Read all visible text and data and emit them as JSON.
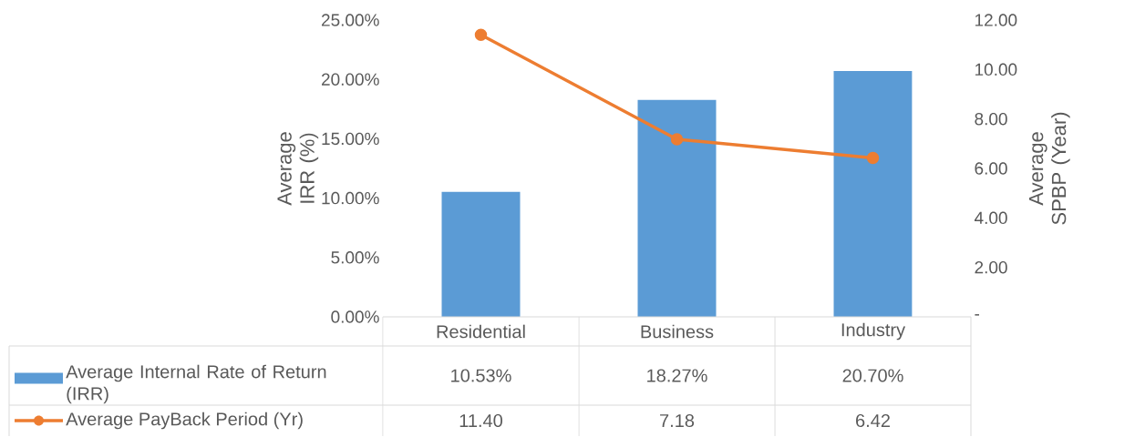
{
  "chart_data": {
    "type": "bar",
    "ylabel": "Average IRR (%)",
    "y2label": "Average SPBP (Year)",
    "categories": [
      "Residential",
      "Business",
      "Industry"
    ],
    "series": [
      {
        "name": "Average Internal Rate of Return (IRR)",
        "color": "#5b9bd5",
        "values": [
          10.53,
          18.27,
          20.7
        ],
        "value_labels": [
          "10.53%",
          "18.27%",
          "20.70%"
        ]
      },
      {
        "name": "Average PayBack Period (Yr)",
        "type": "line",
        "axis": "y2",
        "color": "#ed7d31",
        "values": [
          11.4,
          7.18,
          6.42
        ],
        "value_labels": [
          "11.40",
          "7.18",
          "6.42"
        ]
      }
    ],
    "ylim": [
      0,
      25
    ],
    "yticks": [
      {
        "value": 0,
        "label": "0.00%"
      },
      {
        "value": 5,
        "label": "5.00%"
      },
      {
        "value": 10,
        "label": "10.00%"
      },
      {
        "value": 15,
        "label": "15.00%"
      },
      {
        "value": 20,
        "label": "20.00%"
      },
      {
        "value": 25,
        "label": "25.00%"
      }
    ],
    "y2lim": [
      0,
      12
    ],
    "y2ticks": [
      {
        "value": 0,
        "label": "-"
      },
      {
        "value": 2,
        "label": "2.00"
      },
      {
        "value": 4,
        "label": "4.00"
      },
      {
        "value": 6,
        "label": "6.00"
      },
      {
        "value": 8,
        "label": "8.00"
      },
      {
        "value": 10,
        "label": "10.00"
      },
      {
        "value": 12,
        "label": "12.00"
      }
    ],
    "marker": "circle",
    "legend": "bottom",
    "grid": false
  }
}
